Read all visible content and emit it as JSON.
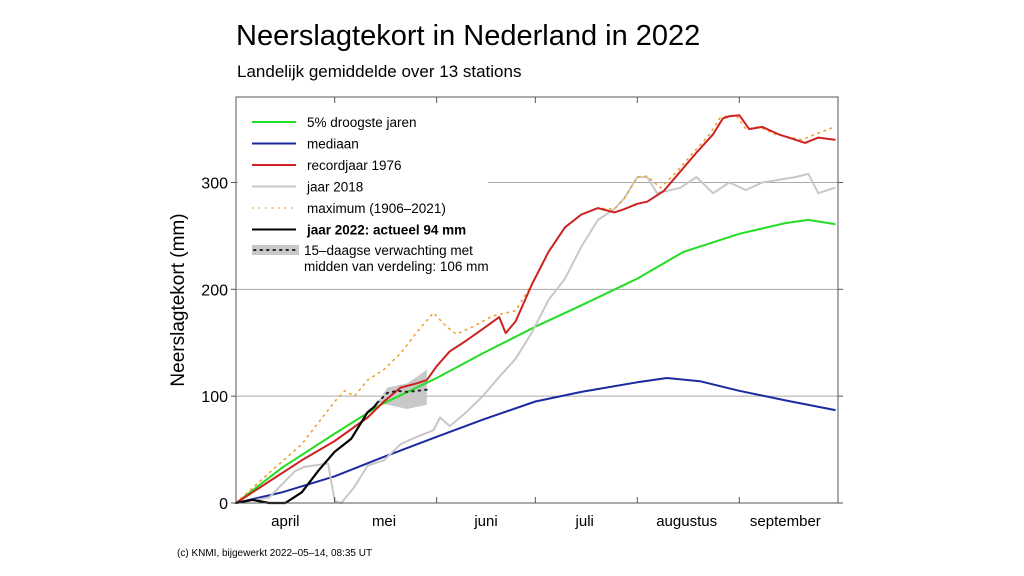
{
  "chart_data": {
    "type": "line",
    "title": "Neerslagtekort in Nederland in 2022",
    "subtitle": "Landelijk gemiddelde over 13 stations",
    "ylabel": "Neerslagtekort (mm)",
    "xlabel": "",
    "x_domain": [
      "04-01",
      "09-30"
    ],
    "ylim": [
      0,
      380
    ],
    "yticks": [
      0,
      100,
      200,
      300
    ],
    "xtick_labels": [
      {
        "label": "april",
        "date": "04-16"
      },
      {
        "label": "mei",
        "date": "05-16"
      },
      {
        "label": "juni",
        "date": "06-16"
      },
      {
        "label": "juli",
        "date": "07-16"
      },
      {
        "label": "augustus",
        "date": "08-16"
      },
      {
        "label": "september",
        "date": "09-15"
      }
    ],
    "month_boundaries": [
      "05-01",
      "06-01",
      "07-01",
      "08-01",
      "09-01"
    ],
    "grid": "horizontal",
    "legend_position": "top-left",
    "series": [
      {
        "name": "5% droogste jaren",
        "color": "#22dd22",
        "style": "solid",
        "points": [
          [
            "04-01",
            0
          ],
          [
            "04-15",
            33
          ],
          [
            "05-01",
            65
          ],
          [
            "05-15",
            92
          ],
          [
            "06-01",
            117
          ],
          [
            "06-15",
            140
          ],
          [
            "07-01",
            165
          ],
          [
            "07-15",
            185
          ],
          [
            "08-01",
            210
          ],
          [
            "08-15",
            235
          ],
          [
            "09-01",
            252
          ],
          [
            "09-15",
            262
          ],
          [
            "09-22",
            265
          ],
          [
            "09-30",
            261
          ]
        ]
      },
      {
        "name": "mediaan",
        "color": "#1c2aa0",
        "style": "solid",
        "points": [
          [
            "04-01",
            0
          ],
          [
            "04-15",
            10
          ],
          [
            "05-01",
            25
          ],
          [
            "05-15",
            42
          ],
          [
            "06-01",
            62
          ],
          [
            "06-15",
            78
          ],
          [
            "07-01",
            95
          ],
          [
            "07-15",
            104
          ],
          [
            "08-01",
            113
          ],
          [
            "08-10",
            117
          ],
          [
            "08-20",
            114
          ],
          [
            "09-01",
            105
          ],
          [
            "09-15",
            96
          ],
          [
            "09-30",
            87
          ]
        ]
      },
      {
        "name": "jaar 2018",
        "color": "#c8c8c8",
        "style": "solid",
        "points": [
          [
            "04-01",
            0
          ],
          [
            "04-11",
            5
          ],
          [
            "04-19",
            30
          ],
          [
            "04-22",
            34
          ],
          [
            "04-29",
            37
          ],
          [
            "05-01",
            2
          ],
          [
            "05-03",
            0
          ],
          [
            "05-07",
            15
          ],
          [
            "05-11",
            35
          ],
          [
            "05-16",
            40
          ],
          [
            "05-21",
            55
          ],
          [
            "05-26",
            62
          ],
          [
            "05-31",
            68
          ],
          [
            "06-02",
            80
          ],
          [
            "06-05",
            72
          ],
          [
            "06-10",
            85
          ],
          [
            "06-15",
            100
          ],
          [
            "06-20",
            118
          ],
          [
            "06-25",
            135
          ],
          [
            "06-30",
            160
          ],
          [
            "07-05",
            190
          ],
          [
            "07-10",
            210
          ],
          [
            "07-15",
            240
          ],
          [
            "07-20",
            265
          ],
          [
            "07-25",
            275
          ],
          [
            "07-28",
            285
          ],
          [
            "08-01",
            305
          ],
          [
            "08-04",
            305
          ],
          [
            "08-07",
            290
          ],
          [
            "08-14",
            295
          ],
          [
            "08-19",
            305
          ],
          [
            "08-24",
            290
          ],
          [
            "08-29",
            300
          ],
          [
            "09-03",
            293
          ],
          [
            "09-08",
            300
          ],
          [
            "09-18",
            305
          ],
          [
            "09-22",
            308
          ],
          [
            "09-25",
            290
          ],
          [
            "09-30",
            295
          ]
        ]
      },
      {
        "name": "maximum (1906–2021)",
        "color": "#f0a030",
        "style": "dotted",
        "points": [
          [
            "04-01",
            0
          ],
          [
            "04-11",
            28
          ],
          [
            "04-21",
            55
          ],
          [
            "05-01",
            95
          ],
          [
            "05-04",
            105
          ],
          [
            "05-07",
            100
          ],
          [
            "05-11",
            115
          ],
          [
            "05-16",
            125
          ],
          [
            "05-21",
            140
          ],
          [
            "05-26",
            160
          ],
          [
            "05-31",
            178
          ],
          [
            "06-04",
            165
          ],
          [
            "06-07",
            158
          ],
          [
            "06-12",
            165
          ],
          [
            "06-18",
            175
          ],
          [
            "06-25",
            180
          ],
          [
            "06-30",
            205
          ],
          [
            "07-05",
            235
          ],
          [
            "07-10",
            258
          ],
          [
            "07-15",
            270
          ],
          [
            "07-20",
            276
          ],
          [
            "07-25",
            275
          ],
          [
            "07-28",
            285
          ],
          [
            "08-01",
            305
          ],
          [
            "08-04",
            306
          ],
          [
            "08-08",
            295
          ],
          [
            "08-13",
            310
          ],
          [
            "08-18",
            328
          ],
          [
            "08-23",
            345
          ],
          [
            "08-26",
            360
          ],
          [
            "08-28",
            362
          ],
          [
            "08-31",
            363
          ],
          [
            "09-03",
            350
          ],
          [
            "09-07",
            352
          ],
          [
            "09-12",
            345
          ],
          [
            "09-17",
            342
          ],
          [
            "09-20",
            340
          ],
          [
            "09-24",
            345
          ],
          [
            "09-30",
            352
          ]
        ]
      },
      {
        "name": "recordjaar 1976",
        "color": "#cc2222",
        "style": "solid",
        "points": [
          [
            "04-01",
            0
          ],
          [
            "04-11",
            20
          ],
          [
            "04-21",
            40
          ],
          [
            "05-01",
            58
          ],
          [
            "05-11",
            80
          ],
          [
            "05-16",
            95
          ],
          [
            "05-21",
            108
          ],
          [
            "05-26",
            112
          ],
          [
            "05-29",
            115
          ],
          [
            "06-01",
            128
          ],
          [
            "06-05",
            142
          ],
          [
            "06-10",
            152
          ],
          [
            "06-16",
            165
          ],
          [
            "06-20",
            174
          ],
          [
            "06-22",
            159
          ],
          [
            "06-25",
            170
          ],
          [
            "06-30",
            205
          ],
          [
            "07-05",
            235
          ],
          [
            "07-10",
            258
          ],
          [
            "07-15",
            270
          ],
          [
            "07-20",
            276
          ],
          [
            "07-25",
            272
          ],
          [
            "07-28",
            275
          ],
          [
            "08-01",
            280
          ],
          [
            "08-04",
            282
          ],
          [
            "08-09",
            292
          ],
          [
            "08-14",
            310
          ],
          [
            "08-19",
            328
          ],
          [
            "08-24",
            345
          ],
          [
            "08-27",
            360
          ],
          [
            "08-29",
            362
          ],
          [
            "09-01",
            363
          ],
          [
            "09-04",
            350
          ],
          [
            "09-08",
            352
          ],
          [
            "09-13",
            345
          ],
          [
            "09-18",
            340
          ],
          [
            "09-21",
            337
          ],
          [
            "09-25",
            342
          ],
          [
            "09-30",
            340
          ]
        ]
      },
      {
        "name": "jaar 2022: actueel 94 mm",
        "color": "#000000",
        "style": "solid",
        "points": [
          [
            "04-01",
            0
          ],
          [
            "04-06",
            3
          ],
          [
            "04-11",
            0
          ],
          [
            "04-16",
            0
          ],
          [
            "04-21",
            10
          ],
          [
            "04-26",
            30
          ],
          [
            "05-01",
            48
          ],
          [
            "05-06",
            60
          ],
          [
            "05-09",
            75
          ],
          [
            "05-11",
            85
          ],
          [
            "05-13",
            90
          ],
          [
            "05-14",
            94
          ]
        ]
      }
    ],
    "forecast": {
      "name": "15–daagse verwachting met",
      "name_line2": "midden van verdeling: 106 mm",
      "band_color": "#c8c8c8",
      "median": [
        [
          "05-14",
          94
        ],
        [
          "05-17",
          103
        ],
        [
          "05-20",
          105
        ],
        [
          "05-23",
          104
        ],
        [
          "05-26",
          105
        ],
        [
          "05-29",
          106
        ]
      ],
      "lower": [
        [
          "05-14",
          94
        ],
        [
          "05-17",
          92
        ],
        [
          "05-20",
          90
        ],
        [
          "05-23",
          88
        ],
        [
          "05-26",
          90
        ],
        [
          "05-29",
          92
        ]
      ],
      "upper": [
        [
          "05-14",
          94
        ],
        [
          "05-17",
          108
        ],
        [
          "05-20",
          110
        ],
        [
          "05-23",
          112
        ],
        [
          "05-26",
          118
        ],
        [
          "05-29",
          125
        ]
      ]
    }
  },
  "footer": "(c) KNMI, bijgewerkt 2022–05–14, 08:35 UT"
}
